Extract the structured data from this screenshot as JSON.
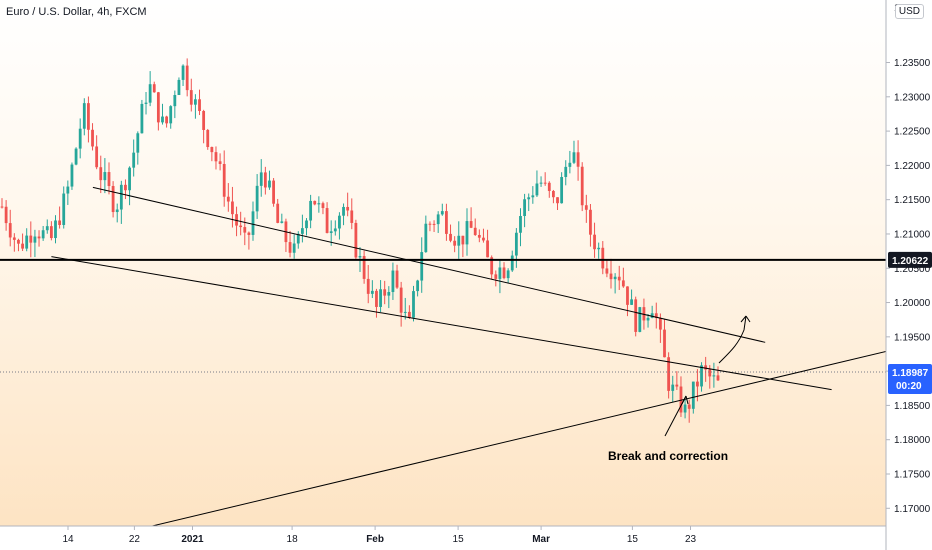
{
  "header": {
    "symbol_title": "Euro / U.S. Dollar, 4h, FXCM",
    "currency_badge": "USD"
  },
  "chart_data": {
    "type": "candlestick",
    "title": "Euro / U.S. Dollar, 4h, FXCM",
    "y_axis": {
      "range": [
        1.1645,
        1.2412
      ],
      "tick_labels": [
        "1.23500",
        "1.23000",
        "1.22500",
        "1.22000",
        "1.21500",
        "1.21000",
        "1.20500",
        "1.20000",
        "1.19500",
        "1.19000",
        "1.18500",
        "1.18000",
        "1.17500",
        "1.17000"
      ],
      "tick_values": [
        1.235,
        1.23,
        1.225,
        1.22,
        1.215,
        1.21,
        1.205,
        1.2,
        1.195,
        1.19,
        1.185,
        1.18,
        1.175,
        1.17
      ],
      "top_partial_label": "1.2"
    },
    "x_axis": {
      "tick_labels": [
        "14",
        "22",
        "2021",
        "18",
        "Feb",
        "15",
        "Mar",
        "15",
        "23"
      ],
      "tick_index": [
        0,
        8,
        15,
        27,
        37,
        47,
        57,
        68,
        75
      ]
    },
    "price_path": [
      1.214,
      1.208,
      1.211,
      1.209,
      1.216,
      1.228,
      1.219,
      1.214,
      1.221,
      1.232,
      1.225,
      1.235,
      1.228,
      1.222,
      1.214,
      1.208,
      1.22,
      1.211,
      1.207,
      1.216,
      1.211,
      1.214,
      1.206,
      1.199,
      1.204,
      1.196,
      1.211,
      1.213,
      1.209,
      1.211,
      1.205,
      1.205,
      1.214,
      1.218,
      1.214,
      1.223,
      1.211,
      1.206,
      1.204,
      1.197,
      1.2,
      1.188,
      1.184,
      1.19,
      1.188
    ],
    "horizontal_level": {
      "value": 1.20622,
      "label": "1.20622"
    },
    "current_price": {
      "value": 1.18987,
      "label": "1.18987",
      "countdown": "00:20"
    },
    "trendlines": [
      {
        "name": "upper-descending",
        "from": {
          "i": 3,
          "p": 1.2168
        },
        "to": {
          "i": 84,
          "p": 1.1942
        }
      },
      {
        "name": "lower-descending",
        "from": {
          "i": -2,
          "p": 1.2067
        },
        "to": {
          "i": 92,
          "p": 1.1873
        }
      },
      {
        "name": "ascending-support",
        "from": {
          "i": 0,
          "p": 1.1645
        },
        "to": {
          "i": 107,
          "p": 1.1953
        }
      }
    ],
    "annotation": {
      "text": "Break and correction"
    },
    "colors": {
      "up": "#26a69a",
      "down": "#ef5350",
      "level": "#000000",
      "tag_bg": "#131722",
      "current_tag_bg": "#2962ff"
    }
  }
}
